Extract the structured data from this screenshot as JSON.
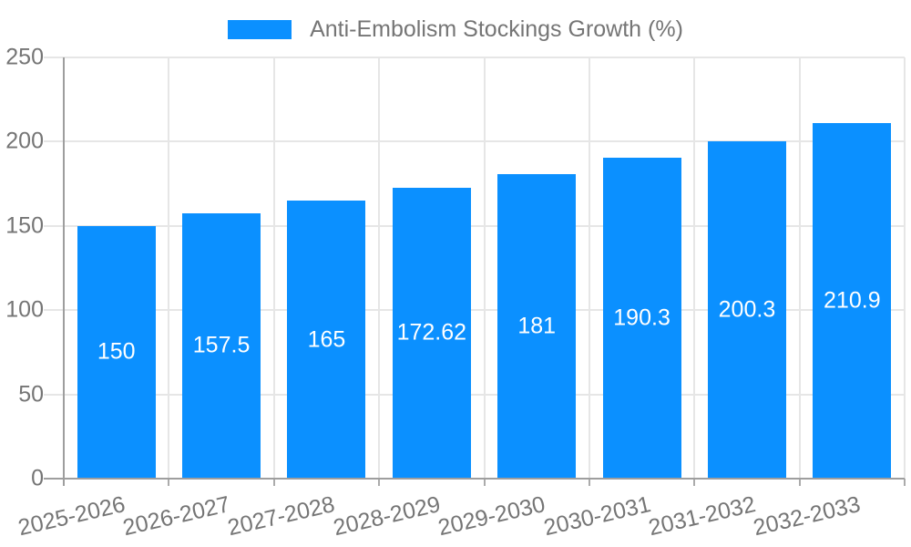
{
  "legend": {
    "label": "Anti-Embolism Stockings Growth (%)"
  },
  "chart_data": {
    "type": "bar",
    "title": "Anti-Embolism Stockings Growth (%)",
    "categories": [
      "2025-2026",
      "2026-2027",
      "2027-2028",
      "2028-2029",
      "2029-2030",
      "2030-2031",
      "2031-2032",
      "2032-2033"
    ],
    "values": [
      150,
      157.5,
      165,
      172.62,
      181,
      190.3,
      200.3,
      210.9
    ],
    "bar_labels": [
      "150",
      "157.5",
      "165",
      "172.62",
      "181",
      "190.3",
      "200.3",
      "210.9"
    ],
    "xlabel": "",
    "ylabel": "",
    "y_ticks": [
      0,
      50,
      100,
      150,
      200,
      250
    ],
    "ylim": [
      0,
      250
    ],
    "grid": true,
    "legend_position": "top",
    "colors": {
      "bar": "#0b90ff",
      "gridline": "#e6e6e6",
      "axis_line": "#9e9e9e",
      "tick_mark": "#ababab",
      "axis_text": "#757575",
      "value_label": "#ffffff"
    }
  }
}
